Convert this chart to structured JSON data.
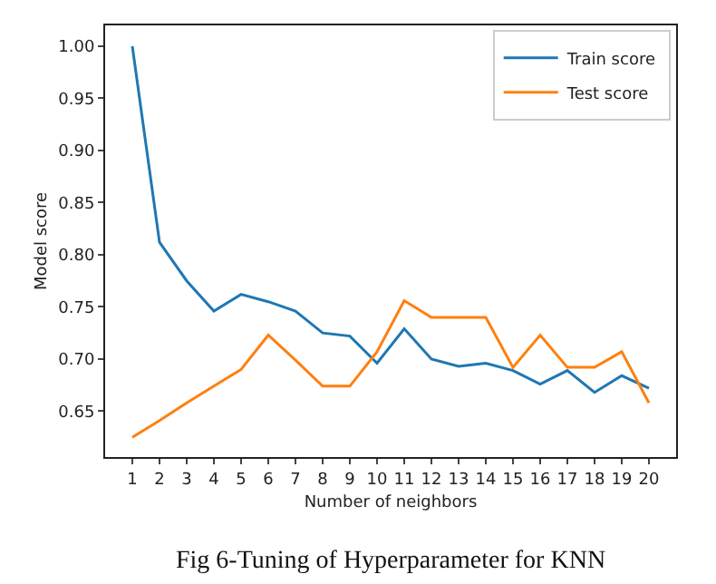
{
  "chart_data": {
    "type": "line",
    "xlabel": "Number of neighbors",
    "ylabel": "Model score",
    "x": [
      1,
      2,
      3,
      4,
      5,
      6,
      7,
      8,
      9,
      10,
      11,
      12,
      13,
      14,
      15,
      16,
      17,
      18,
      19,
      20
    ],
    "xlim": [
      0.0,
      21.0
    ],
    "xticks": [
      1,
      2,
      3,
      4,
      5,
      6,
      7,
      8,
      9,
      10,
      11,
      12,
      13,
      14,
      15,
      16,
      17,
      18,
      19,
      20
    ],
    "ylim": [
      0.606,
      1.02
    ],
    "yticks": [
      {
        "value": 0.65,
        "label": "0.65"
      },
      {
        "value": 0.7,
        "label": "0.70"
      },
      {
        "value": 0.75,
        "label": "0.75"
      },
      {
        "value": 0.8,
        "label": "0.80"
      },
      {
        "value": 0.85,
        "label": "0.85"
      },
      {
        "value": 0.9,
        "label": "0.90"
      },
      {
        "value": 0.95,
        "label": "0.95"
      },
      {
        "value": 1.0,
        "label": "1.00"
      }
    ],
    "series": [
      {
        "name": "Train score",
        "color": "#1f77b4",
        "values": [
          1.0,
          0.812,
          0.775,
          0.746,
          0.762,
          0.755,
          0.746,
          0.725,
          0.722,
          0.696,
          0.729,
          0.7,
          0.693,
          0.696,
          0.689,
          0.676,
          0.689,
          0.668,
          0.684,
          0.672
        ]
      },
      {
        "name": "Test score",
        "color": "#ff7f0e",
        "values": [
          0.625,
          0.641,
          0.658,
          0.674,
          0.69,
          0.723,
          0.699,
          0.674,
          0.674,
          0.707,
          0.756,
          0.74,
          0.74,
          0.74,
          0.692,
          0.723,
          0.692,
          0.692,
          0.707,
          0.658
        ]
      }
    ],
    "legend": "top right",
    "marker": "none",
    "line_style": "solid",
    "annotations": [
      "Fig 6-Tuning of Hyperparameter for KNN"
    ]
  }
}
